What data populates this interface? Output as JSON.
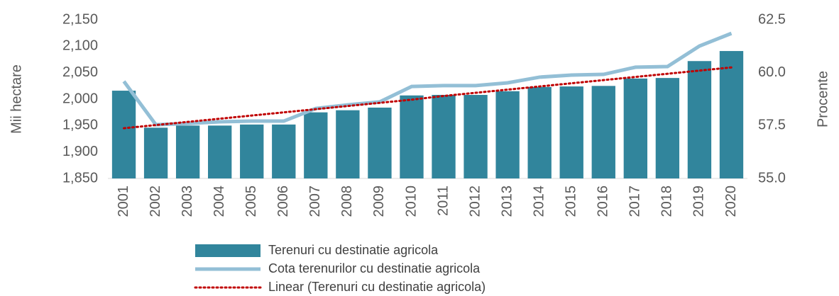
{
  "chart_data": {
    "type": "bar",
    "ylabel": "Mii hectare",
    "y2label": "Procente",
    "categories": [
      "2001",
      "2002",
      "2003",
      "2004",
      "2005",
      "2006",
      "2007",
      "2008",
      "2009",
      "2010",
      "2011",
      "2012",
      "2013",
      "2014",
      "2015",
      "2016",
      "2017",
      "2018",
      "2019",
      "2020"
    ],
    "series": [
      {
        "name": "Terenuri cu destinatie agricola",
        "type": "bar",
        "color": "#31859c",
        "values": [
          2016,
          1946,
          1950,
          1950,
          1952,
          1952,
          1975,
          1979,
          1984,
          2007,
          2008,
          2008,
          2015,
          2023,
          2024,
          2025,
          2039,
          2040,
          2072,
          2091
        ]
      },
      {
        "name": "Cota terenurilor cu destinatie agricola",
        "type": "line",
        "axis": "y2",
        "color": "#93bfd6",
        "values": [
          59.59,
          57.54,
          57.6,
          57.68,
          57.71,
          57.71,
          58.31,
          58.48,
          58.62,
          59.35,
          59.39,
          59.39,
          59.52,
          59.79,
          59.89,
          59.92,
          60.26,
          60.29,
          61.26,
          61.86
        ]
      },
      {
        "name": "Linear (Terenuri cu destinatie agricola)",
        "type": "line",
        "style": "dotted",
        "color": "#c00000",
        "values": [
          1945,
          1951,
          1957,
          1963,
          1969,
          1975,
          1981,
          1987,
          1993,
          1999,
          2006,
          2012,
          2018,
          2024,
          2030,
          2036,
          2042,
          2048,
          2054,
          2060
        ]
      }
    ],
    "ylim": [
      1850,
      2150
    ],
    "yticks": [
      {
        "value": 1850,
        "label": "1,850"
      },
      {
        "value": 1900,
        "label": "1,900"
      },
      {
        "value": 1950,
        "label": "1,950"
      },
      {
        "value": 2000,
        "label": "2,000"
      },
      {
        "value": 2050,
        "label": "2,050"
      },
      {
        "value": 2100,
        "label": "2,100"
      },
      {
        "value": 2150,
        "label": "2,150"
      }
    ],
    "y2lim": [
      55,
      62.5
    ],
    "y2ticks": [
      {
        "value": 55,
        "label": "55.0"
      },
      {
        "value": 57.5,
        "label": "57.5"
      },
      {
        "value": 60,
        "label": "60.0"
      },
      {
        "value": 62.5,
        "label": "62.5"
      }
    ],
    "grid": false,
    "legend": "bottom"
  }
}
